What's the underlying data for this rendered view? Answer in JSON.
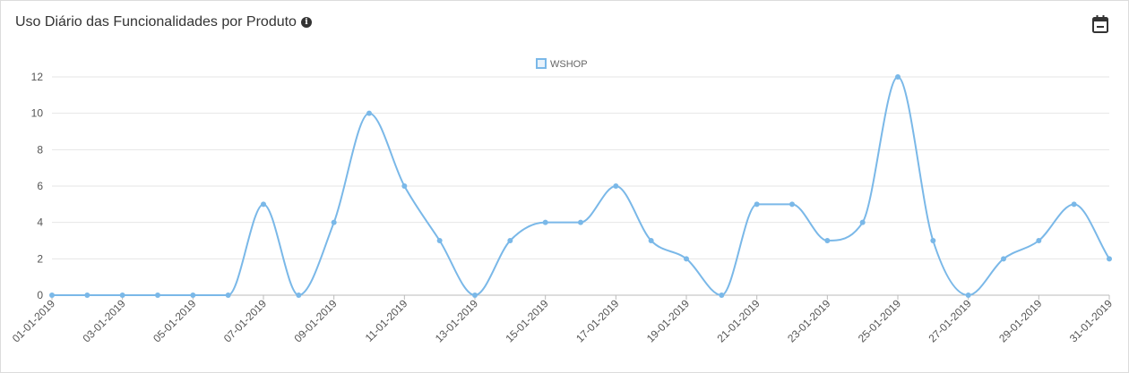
{
  "header": {
    "title": "Uso Diário das Funcionalidades por Produto",
    "info_icon": "info-circle-icon",
    "calendar_icon": "calendar-icon"
  },
  "colors": {
    "series": "#7ab8e8",
    "grid": "#e6e6e6",
    "axis": "#bbbbbb",
    "text": "#555555"
  },
  "chart_data": {
    "type": "line",
    "title": "",
    "xlabel": "",
    "ylabel": "",
    "ylim": [
      0,
      12
    ],
    "yticks": [
      0,
      2,
      4,
      6,
      8,
      10,
      12
    ],
    "grid": true,
    "legend_position": "top-center",
    "x": [
      "01-01-2019",
      "02-01-2019",
      "03-01-2019",
      "04-01-2019",
      "05-01-2019",
      "06-01-2019",
      "07-01-2019",
      "08-01-2019",
      "09-01-2019",
      "10-01-2019",
      "11-01-2019",
      "12-01-2019",
      "13-01-2019",
      "14-01-2019",
      "15-01-2019",
      "16-01-2019",
      "17-01-2019",
      "18-01-2019",
      "19-01-2019",
      "20-01-2019",
      "21-01-2019",
      "22-01-2019",
      "23-01-2019",
      "24-01-2019",
      "25-01-2019",
      "26-01-2019",
      "27-01-2019",
      "28-01-2019",
      "29-01-2019",
      "30-01-2019",
      "31-01-2019"
    ],
    "x_tick_labels": [
      "01-01-2019",
      "03-01-2019",
      "05-01-2019",
      "07-01-2019",
      "09-01-2019",
      "11-01-2019",
      "13-01-2019",
      "15-01-2019",
      "17-01-2019",
      "19-01-2019",
      "21-01-2019",
      "23-01-2019",
      "25-01-2019",
      "27-01-2019",
      "29-01-2019",
      "31-01-2019"
    ],
    "series": [
      {
        "name": "WSHOP",
        "values": [
          0,
          0,
          0,
          0,
          0,
          0,
          5,
          0,
          4,
          10,
          6,
          3,
          0,
          3,
          4,
          4,
          6,
          3,
          2,
          0,
          5,
          5,
          3,
          4,
          12,
          3,
          0,
          2,
          3,
          5,
          2
        ]
      }
    ]
  }
}
